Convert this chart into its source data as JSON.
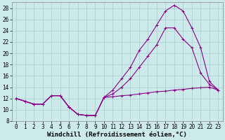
{
  "xlabel": "Windchill (Refroidissement éolien,°C)",
  "background_color": "#cdeaea",
  "grid_color": "#aacccc",
  "line_color": "#880088",
  "xlim": [
    -0.5,
    23.5
  ],
  "ylim": [
    8,
    29
  ],
  "xticks": [
    0,
    1,
    2,
    3,
    4,
    5,
    6,
    7,
    8,
    9,
    10,
    11,
    12,
    13,
    14,
    15,
    16,
    17,
    18,
    19,
    20,
    21,
    22,
    23
  ],
  "yticks": [
    8,
    10,
    12,
    14,
    16,
    18,
    20,
    22,
    24,
    26,
    28
  ],
  "curve1_x": [
    0,
    1,
    2,
    3,
    4,
    5,
    6,
    7,
    8,
    9,
    10,
    11,
    12,
    13,
    14,
    15,
    16,
    17,
    18,
    19,
    20,
    21,
    22,
    23
  ],
  "curve1_y": [
    12.0,
    11.5,
    11.0,
    11.0,
    12.5,
    12.5,
    10.5,
    9.2,
    9.0,
    9.0,
    12.2,
    12.3,
    12.5,
    12.6,
    12.8,
    13.0,
    13.2,
    13.3,
    13.5,
    13.6,
    13.8,
    13.9,
    14.0,
    13.5
  ],
  "curve2_x": [
    0,
    1,
    2,
    3,
    4,
    5,
    6,
    7,
    8,
    9,
    10,
    11,
    12,
    13,
    14,
    15,
    16,
    17,
    18,
    19,
    20,
    21,
    22,
    23
  ],
  "curve2_y": [
    12.0,
    11.5,
    11.0,
    11.0,
    12.5,
    12.5,
    10.5,
    9.2,
    9.0,
    9.0,
    12.2,
    13.5,
    15.5,
    17.5,
    20.5,
    22.5,
    25.0,
    27.5,
    28.5,
    27.5,
    24.5,
    21.0,
    15.0,
    13.5
  ],
  "curve3_x": [
    0,
    1,
    2,
    3,
    4,
    5,
    6,
    7,
    8,
    9,
    10,
    11,
    12,
    13,
    14,
    15,
    16,
    17,
    18,
    19,
    20,
    21,
    22,
    23
  ],
  "curve3_y": [
    12.0,
    11.5,
    11.0,
    11.0,
    12.5,
    12.5,
    10.5,
    9.2,
    9.0,
    9.0,
    12.2,
    12.8,
    14.0,
    15.5,
    17.5,
    19.5,
    21.5,
    24.5,
    24.5,
    22.5,
    21.0,
    16.5,
    14.5,
    13.5
  ],
  "marker_size": 3,
  "line_width": 0.8,
  "tick_fontsize": 5.5,
  "label_fontsize": 6.5
}
